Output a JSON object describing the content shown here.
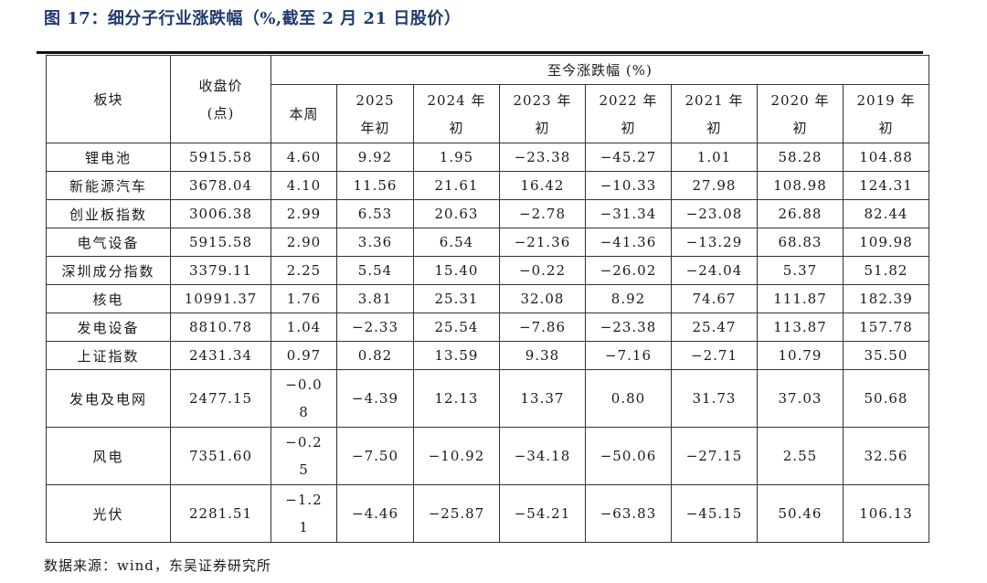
{
  "title": "图 17：细分子行业涨跌幅（%,截至 2 月 21 日股价）",
  "header": {
    "sector": "板块",
    "close_line1": "收盘价",
    "close_line2": "(点)",
    "group": "至今涨跌幅 (%)",
    "week": "本周",
    "periods": [
      {
        "line1": "2025",
        "line2": "年初"
      },
      {
        "line1": "2024 年",
        "line2": "初"
      },
      {
        "line1": "2023 年",
        "line2": "初"
      },
      {
        "line1": "2022 年",
        "line2": "初"
      },
      {
        "line1": "2021 年",
        "line2": "初"
      },
      {
        "line1": "2020 年",
        "line2": "初"
      },
      {
        "line1": "2019 年",
        "line2": "初"
      }
    ]
  },
  "rows": [
    {
      "name": "锂电池",
      "close": "5915.58",
      "week": "4.60",
      "week_l1": "",
      "week_l2": "",
      "v": [
        "9.92",
        "1.95",
        "−23.38",
        "−45.27",
        "1.01",
        "58.28",
        "104.88"
      ]
    },
    {
      "name": "新能源汽车",
      "close": "3678.04",
      "week": "4.10",
      "week_l1": "",
      "week_l2": "",
      "v": [
        "11.56",
        "21.61",
        "16.42",
        "−10.33",
        "27.98",
        "108.98",
        "124.31"
      ]
    },
    {
      "name": "创业板指数",
      "close": "3006.38",
      "week": "2.99",
      "week_l1": "",
      "week_l2": "",
      "v": [
        "6.53",
        "20.63",
        "−2.78",
        "−31.34",
        "−23.08",
        "26.88",
        "82.44"
      ]
    },
    {
      "name": "电气设备",
      "close": "5915.58",
      "week": "2.90",
      "week_l1": "",
      "week_l2": "",
      "v": [
        "3.36",
        "6.54",
        "−21.36",
        "−41.36",
        "−13.29",
        "68.83",
        "109.98"
      ]
    },
    {
      "name": "深圳成分指数",
      "close": "3379.11",
      "week": "2.25",
      "week_l1": "",
      "week_l2": "",
      "v": [
        "5.54",
        "15.40",
        "−0.22",
        "−26.02",
        "−24.04",
        "5.37",
        "51.82"
      ]
    },
    {
      "name": "核电",
      "close": "10991.37",
      "week": "1.76",
      "week_l1": "",
      "week_l2": "",
      "v": [
        "3.81",
        "25.31",
        "32.08",
        "8.92",
        "74.67",
        "111.87",
        "182.39"
      ]
    },
    {
      "name": "发电设备",
      "close": "8810.78",
      "week": "1.04",
      "week_l1": "",
      "week_l2": "",
      "v": [
        "−2.33",
        "25.54",
        "−7.86",
        "−23.38",
        "25.47",
        "113.87",
        "157.78"
      ]
    },
    {
      "name": "上证指数",
      "close": "2431.34",
      "week": "0.97",
      "week_l1": "",
      "week_l2": "",
      "v": [
        "0.82",
        "13.59",
        "9.38",
        "−7.16",
        "−2.71",
        "10.79",
        "35.50"
      ]
    }
  ],
  "tall_rows": [
    {
      "name": "发电及电网",
      "close": "2477.15",
      "week_l1": "−0.0",
      "week_l2": "8",
      "v": [
        "−4.39",
        "12.13",
        "13.37",
        "0.80",
        "31.73",
        "37.03",
        "50.68"
      ]
    },
    {
      "name": "风电",
      "close": "7351.60",
      "week_l1": "−0.2",
      "week_l2": "5",
      "v": [
        "−7.50",
        "−10.92",
        "−34.18",
        "−50.06",
        "−27.15",
        "2.55",
        "32.56"
      ]
    },
    {
      "name": "光伏",
      "close": "2281.51",
      "week_l1": "−1.2",
      "week_l2": "1",
      "v": [
        "−4.46",
        "−25.87",
        "−54.21",
        "−63.83",
        "−45.15",
        "50.46",
        "106.13"
      ]
    }
  ],
  "source": "数据来源：wind，东吴证券研究所"
}
